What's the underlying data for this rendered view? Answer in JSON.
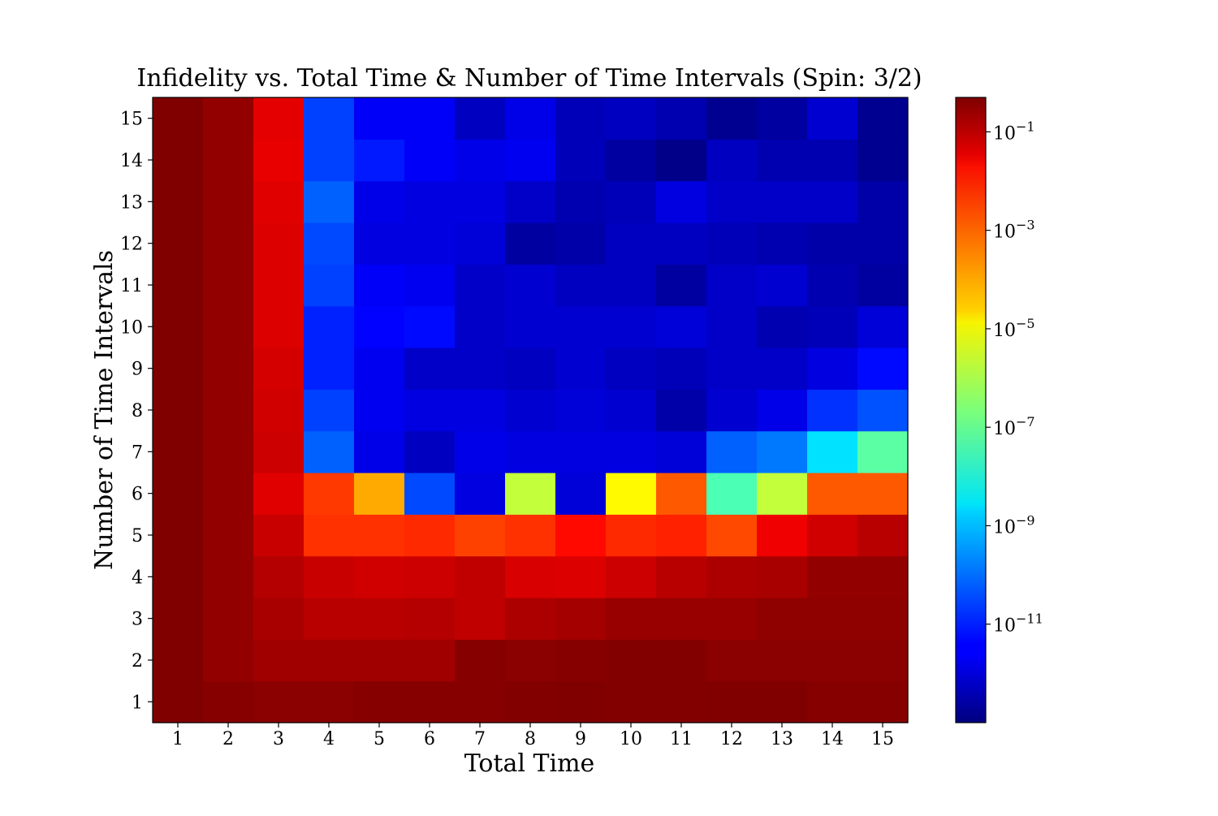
{
  "chart_data": {
    "type": "heatmap",
    "title": "Infidelity vs. Total Time & Number of Time Intervals (Spin: 3/2)",
    "xlabel": "Total Time",
    "ylabel": "Number of Time Intervals",
    "x": [
      1,
      2,
      3,
      4,
      5,
      6,
      7,
      8,
      9,
      10,
      11,
      12,
      13,
      14,
      15
    ],
    "y": [
      1,
      2,
      3,
      4,
      5,
      6,
      7,
      8,
      9,
      10,
      11,
      12,
      13,
      14,
      15
    ],
    "x_tick_labels": [
      "1",
      "2",
      "3",
      "4",
      "5",
      "6",
      "7",
      "8",
      "9",
      "10",
      "11",
      "12",
      "13",
      "14",
      "15"
    ],
    "y_tick_labels": [
      "1",
      "2",
      "3",
      "4",
      "5",
      "6",
      "7",
      "8",
      "9",
      "10",
      "11",
      "12",
      "13",
      "14",
      "15"
    ],
    "colorscale": "jet",
    "color_scale_type": "log",
    "color_range": [
      1e-13,
      0.5
    ],
    "colorbar_ticks": [
      {
        "value": 0.1,
        "base": "10",
        "exp": "−1"
      },
      {
        "value": 0.001,
        "base": "10",
        "exp": "−3"
      },
      {
        "value": 1e-05,
        "base": "10",
        "exp": "−5"
      },
      {
        "value": 1e-07,
        "base": "10",
        "exp": "−7"
      },
      {
        "value": 1e-09,
        "base": "10",
        "exp": "−9"
      },
      {
        "value": 1e-11,
        "base": "10",
        "exp": "−11"
      }
    ],
    "log10_values_by_row_from_y1": [
      [
        -0.3,
        -0.4,
        -0.45,
        -0.45,
        -0.4,
        -0.4,
        -0.4,
        -0.35,
        -0.3,
        -0.35,
        -0.35,
        -0.3,
        -0.3,
        -0.4,
        -0.4
      ],
      [
        -0.3,
        -0.55,
        -0.7,
        -0.7,
        -0.7,
        -0.7,
        -0.4,
        -0.45,
        -0.4,
        -0.35,
        -0.35,
        -0.45,
        -0.45,
        -0.45,
        -0.45
      ],
      [
        -0.3,
        -0.55,
        -0.8,
        -1.0,
        -1.0,
        -0.95,
        -1.1,
        -0.85,
        -0.75,
        -0.6,
        -0.6,
        -0.6,
        -0.5,
        -0.5,
        -0.5
      ],
      [
        -0.3,
        -0.55,
        -0.95,
        -1.2,
        -1.3,
        -1.25,
        -1.1,
        -1.4,
        -1.45,
        -1.25,
        -1.0,
        -0.85,
        -0.8,
        -0.55,
        -0.55
      ],
      [
        -0.3,
        -0.55,
        -1.2,
        -2.5,
        -2.5,
        -2.4,
        -2.7,
        -2.5,
        -2.0,
        -2.4,
        -2.3,
        -2.8,
        -1.7,
        -1.3,
        -1.0
      ],
      [
        -0.3,
        -0.55,
        -1.5,
        -2.6,
        -4.0,
        -10.5,
        -11.8,
        -5.8,
        -11.9,
        -5.0,
        -3.0,
        -7.3,
        -5.8,
        -3.0,
        -3.0
      ],
      [
        -0.3,
        -0.55,
        -1.25,
        -10.2,
        -11.7,
        -12.2,
        -11.7,
        -11.8,
        -11.8,
        -11.8,
        -11.9,
        -10.2,
        -9.9,
        -8.6,
        -7.1
      ],
      [
        -0.3,
        -0.55,
        -1.3,
        -10.6,
        -11.6,
        -11.8,
        -11.8,
        -12.0,
        -11.9,
        -12.0,
        -12.5,
        -12.0,
        -11.7,
        -10.8,
        -10.4
      ],
      [
        -0.3,
        -0.55,
        -1.35,
        -11.0,
        -11.6,
        -12.1,
        -12.1,
        -12.2,
        -12.0,
        -12.2,
        -12.3,
        -12.1,
        -12.1,
        -11.8,
        -11.3
      ],
      [
        -0.3,
        -0.55,
        -1.45,
        -11.0,
        -11.4,
        -11.3,
        -12.1,
        -12.0,
        -12.0,
        -12.0,
        -11.9,
        -12.1,
        -12.4,
        -12.3,
        -11.9
      ],
      [
        -0.3,
        -0.55,
        -1.45,
        -10.6,
        -11.5,
        -11.6,
        -12.1,
        -12.0,
        -12.2,
        -12.2,
        -12.6,
        -12.1,
        -12.0,
        -12.4,
        -12.6
      ],
      [
        -0.3,
        -0.55,
        -1.45,
        -10.5,
        -11.8,
        -11.8,
        -11.9,
        -12.6,
        -12.5,
        -12.2,
        -12.2,
        -12.3,
        -12.4,
        -12.5,
        -12.5
      ],
      [
        -0.3,
        -0.55,
        -1.5,
        -10.2,
        -11.7,
        -11.8,
        -11.8,
        -12.1,
        -12.4,
        -12.3,
        -11.8,
        -12.1,
        -12.1,
        -12.1,
        -12.5
      ],
      [
        -0.3,
        -0.55,
        -1.6,
        -10.6,
        -11.1,
        -11.5,
        -11.7,
        -11.6,
        -12.3,
        -12.6,
        -12.9,
        -12.2,
        -12.4,
        -12.4,
        -12.8
      ],
      [
        -0.3,
        -0.55,
        -1.55,
        -10.6,
        -11.5,
        -11.5,
        -12.2,
        -11.7,
        -12.3,
        -12.2,
        -12.4,
        -12.8,
        -12.6,
        -12.0,
        -12.8
      ]
    ]
  }
}
